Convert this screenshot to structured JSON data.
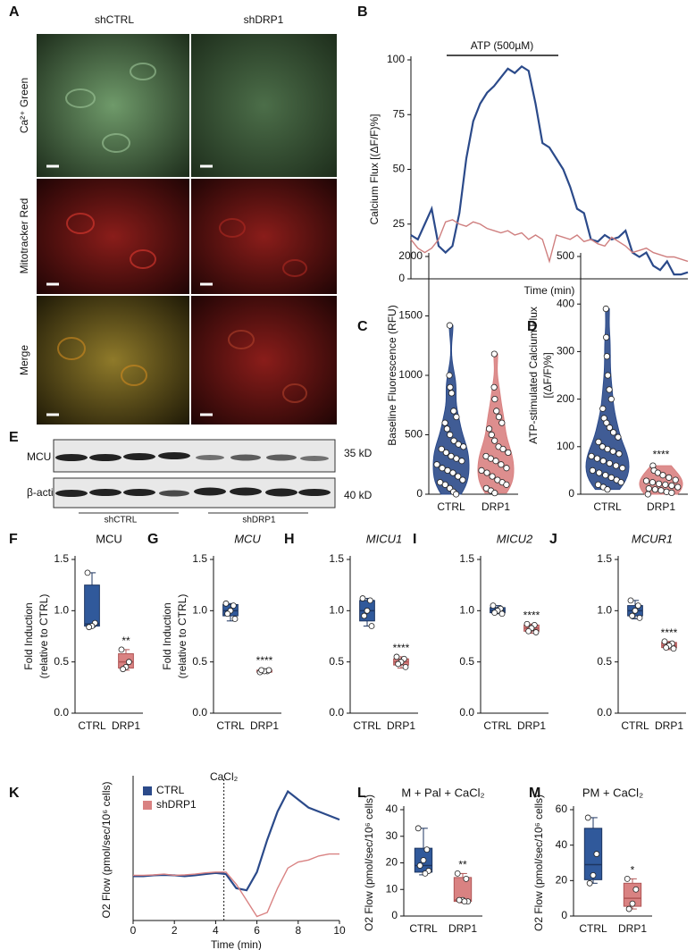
{
  "micrograph": {
    "panel": "A",
    "columns": [
      "shCTRL",
      "shDRP1"
    ],
    "rows": [
      "Ca²⁺ Green",
      "Mitotracker Red",
      "Merge"
    ]
  },
  "blot": {
    "panel": "E",
    "rows": [
      "MCU",
      "β-actin"
    ],
    "sizes": [
      "35 kD",
      "40 kD"
    ],
    "groups": [
      "shCTRL",
      "shDRP1"
    ]
  },
  "chart_data": [
    {
      "type": "line",
      "panel": "B",
      "annotation": "ATP (500µM)",
      "ylabel": "Calcium Flux [(ΔF/F)%]",
      "xlabel": "Time (min)",
      "x": [
        0,
        1,
        2,
        3,
        4,
        5,
        6,
        7,
        8,
        9,
        10,
        11,
        12,
        13,
        14,
        15,
        16,
        17,
        18,
        19,
        20,
        21,
        22,
        23,
        24,
        25,
        26,
        27,
        28,
        29,
        30,
        31,
        32,
        33,
        34,
        35,
        36,
        37,
        38,
        39,
        40
      ],
      "xlim": [
        0,
        40
      ],
      "ylim": [
        0,
        100
      ],
      "yticks": [
        0,
        25,
        50,
        75,
        100
      ],
      "series": [
        {
          "color": "#2b4a8a",
          "values": [
            20,
            18,
            25,
            32,
            15,
            12,
            15,
            30,
            55,
            72,
            80,
            85,
            88,
            92,
            96,
            94,
            97,
            95,
            80,
            62,
            60,
            55,
            50,
            42,
            32,
            30,
            18,
            17,
            20,
            18,
            19,
            22,
            12,
            10,
            12,
            6,
            4,
            8,
            2,
            2,
            3
          ]
        },
        {
          "color": "#cf7f7f",
          "values": [
            18,
            14,
            12,
            14,
            18,
            26,
            27,
            25,
            24,
            26,
            25,
            23,
            22,
            21,
            22,
            20,
            21,
            18,
            20,
            18,
            8,
            20,
            19,
            18,
            20,
            17,
            18,
            16,
            15,
            19,
            17,
            15,
            12,
            13,
            14,
            12,
            11,
            10,
            10,
            9,
            8
          ]
        }
      ]
    },
    {
      "type": "violin",
      "panel": "C",
      "ylabel": "Baseline Fluorescence (RFU)",
      "categories": [
        "CTRL",
        "DRP1"
      ],
      "ylim": [
        0,
        2000
      ],
      "yticks": [
        0,
        500,
        1000,
        1500,
        2000
      ],
      "colors": [
        "#2b4a8a",
        "#d98282"
      ],
      "points": [
        [
          1420,
          1000,
          900,
          850,
          700,
          650,
          600,
          550,
          500,
          450,
          420,
          400,
          380,
          350,
          320,
          300,
          280,
          250,
          220,
          200,
          180,
          150,
          120,
          100,
          80,
          50,
          20,
          0
        ],
        [
          1180,
          900,
          800,
          700,
          650,
          600,
          550,
          500,
          450,
          400,
          380,
          350,
          320,
          300,
          280,
          250,
          220,
          200,
          180,
          150,
          120,
          100,
          80,
          50,
          30,
          10
        ]
      ]
    },
    {
      "type": "violin",
      "panel": "D",
      "ylabel": [
        "ATP-stimulated Calcium Flux",
        "[(ΔF/F)%]"
      ],
      "categories": [
        "CTRL",
        "DRP1"
      ],
      "ylim": [
        0,
        500
      ],
      "yticks": [
        0,
        100,
        200,
        300,
        400,
        500
      ],
      "colors": [
        "#2b4a8a",
        "#d98282"
      ],
      "significance": "****",
      "points": [
        [
          390,
          330,
          290,
          250,
          220,
          200,
          180,
          160,
          150,
          140,
          130,
          120,
          110,
          100,
          95,
          90,
          85,
          80,
          75,
          70,
          65,
          60,
          55,
          50,
          45,
          40,
          35,
          30,
          25,
          20,
          15,
          10
        ],
        [
          60,
          50,
          45,
          40,
          35,
          30,
          28,
          25,
          22,
          20,
          18,
          15,
          12,
          10,
          8,
          5,
          3,
          0
        ]
      ]
    },
    {
      "type": "box",
      "panel": "F",
      "title": "MCU",
      "ylabel": [
        "Fold Induction",
        "(relative to CTRL)"
      ],
      "categories": [
        "CTRL",
        "DRP1"
      ],
      "ylim": [
        0,
        1.5
      ],
      "yticks": [
        {
          "value": 0,
          "label": "0.0"
        },
        0.5,
        {
          "value": 1,
          "label": "1.0"
        },
        1.5
      ],
      "colors": [
        "#30599b",
        "#d98282"
      ],
      "edge_colors": [
        "#1d3560",
        "#b05555"
      ],
      "significance": "**",
      "boxes": [
        {
          "min": 0.84,
          "q1": 0.85,
          "median": 0.87,
          "q3": 1.25,
          "max": 1.37
        },
        {
          "min": 0.42,
          "q1": 0.44,
          "median": 0.5,
          "q3": 0.58,
          "max": 0.62
        }
      ],
      "points": [
        [
          1.37,
          0.88,
          0.85,
          0.84
        ],
        [
          0.62,
          0.5,
          0.45,
          0.43
        ]
      ]
    },
    {
      "type": "box",
      "panel": "G",
      "title": "MCU",
      "italic": true,
      "ylabel": [
        "Fold Induction",
        "(relative to CTRL)"
      ],
      "categories": [
        "CTRL",
        "DRP1"
      ],
      "ylim": [
        0,
        1.5
      ],
      "yticks": [
        {
          "value": 0,
          "label": "0.0"
        },
        0.5,
        {
          "value": 1,
          "label": "1.0"
        },
        1.5
      ],
      "colors": [
        "#30599b",
        "#d98282"
      ],
      "edge_colors": [
        "#1d3560",
        "#b05555"
      ],
      "significance": "****",
      "boxes": [
        {
          "min": 0.9,
          "q1": 0.95,
          "median": 1.0,
          "q3": 1.06,
          "max": 1.07
        },
        {
          "min": 0.39,
          "q1": 0.4,
          "median": 0.41,
          "q3": 0.42,
          "max": 0.43
        }
      ],
      "points": [
        [
          1.07,
          1.05,
          1.0,
          0.97,
          0.92
        ],
        [
          0.4,
          0.41,
          0.41,
          0.42,
          0.42
        ]
      ]
    },
    {
      "type": "box",
      "panel": "H",
      "title": "MICU1",
      "italic": true,
      "categories": [
        "CTRL",
        "DRP1"
      ],
      "ylim": [
        0,
        1.5
      ],
      "yticks": [
        {
          "value": 0,
          "label": "0.0"
        },
        0.5,
        {
          "value": 1,
          "label": "1.0"
        },
        1.5
      ],
      "colors": [
        "#30599b",
        "#d98282"
      ],
      "edge_colors": [
        "#1d3560",
        "#b05555"
      ],
      "significance": "****",
      "boxes": [
        {
          "min": 0.85,
          "q1": 0.9,
          "median": 1.0,
          "q3": 1.1,
          "max": 1.12
        },
        {
          "min": 0.44,
          "q1": 0.47,
          "median": 0.5,
          "q3": 0.53,
          "max": 0.55
        }
      ],
      "points": [
        [
          1.12,
          1.1,
          1.0,
          0.95,
          0.85
        ],
        [
          0.55,
          0.53,
          0.5,
          0.48,
          0.45
        ]
      ]
    },
    {
      "type": "box",
      "panel": "I",
      "title": "MICU2",
      "italic": true,
      "categories": [
        "CTRL",
        "DRP1"
      ],
      "ylim": [
        0,
        1.5
      ],
      "yticks": [
        {
          "value": 0,
          "label": "0.0"
        },
        0.5,
        {
          "value": 1,
          "label": "1.0"
        },
        1.5
      ],
      "colors": [
        "#30599b",
        "#d98282"
      ],
      "edge_colors": [
        "#1d3560",
        "#b05555"
      ],
      "significance": "****",
      "boxes": [
        {
          "min": 0.97,
          "q1": 0.98,
          "median": 1.0,
          "q3": 1.03,
          "max": 1.05
        },
        {
          "min": 0.78,
          "q1": 0.8,
          "median": 0.83,
          "q3": 0.86,
          "max": 0.87
        }
      ],
      "points": [
        [
          1.05,
          1.02,
          1.0,
          0.98,
          0.97
        ],
        [
          0.87,
          0.86,
          0.83,
          0.8,
          0.79
        ]
      ]
    },
    {
      "type": "box",
      "panel": "J",
      "title": "MCUR1",
      "italic": true,
      "categories": [
        "CTRL",
        "DRP1"
      ],
      "ylim": [
        0,
        1.5
      ],
      "yticks": [
        {
          "value": 0,
          "label": "0.0"
        },
        0.5,
        {
          "value": 1,
          "label": "1.0"
        },
        1.5
      ],
      "colors": [
        "#30599b",
        "#d98282"
      ],
      "edge_colors": [
        "#1d3560",
        "#b05555"
      ],
      "significance": "****",
      "boxes": [
        {
          "min": 0.92,
          "q1": 0.95,
          "median": 1.0,
          "q3": 1.05,
          "max": 1.1
        },
        {
          "min": 0.62,
          "q1": 0.64,
          "median": 0.66,
          "q3": 0.69,
          "max": 0.7
        }
      ],
      "points": [
        [
          1.1,
          1.05,
          1.0,
          0.95,
          0.93
        ],
        [
          0.7,
          0.68,
          0.66,
          0.64,
          0.63
        ]
      ]
    },
    {
      "type": "line",
      "panel": "K",
      "ylabel": "O2 Flow (pmol/sec/10⁶ cells)",
      "xlabel": "Time (min)",
      "legend": true,
      "event": {
        "label": "CaCl₂",
        "x": 4.4
      },
      "x": [
        0,
        0.5,
        1,
        1.5,
        2,
        2.5,
        3,
        3.5,
        4,
        4.5,
        5,
        5.5,
        6,
        6.5,
        7,
        7.5,
        8,
        8.5,
        9,
        9.5,
        10
      ],
      "xlim": [
        0,
        10
      ],
      "xticks": [
        0,
        2,
        4,
        6,
        8,
        10
      ],
      "ylim": [
        0,
        35
      ],
      "series": [
        {
          "name": "CTRL",
          "color": "#2b4a8a",
          "values": [
            11,
            11,
            11.2,
            11.3,
            11.2,
            11,
            11.2,
            11.5,
            11.8,
            11.5,
            8,
            7.5,
            12,
            20,
            27,
            32,
            30,
            28,
            27,
            26,
            25
          ]
        },
        {
          "name": "shDRP1",
          "color": "#d98282",
          "values": [
            11.2,
            11.2,
            11.3,
            11.5,
            11.2,
            11.3,
            11.5,
            11.8,
            12,
            12,
            9,
            5,
            1,
            2,
            8,
            13,
            14.5,
            15,
            16,
            16.5,
            16.5
          ]
        }
      ]
    },
    {
      "type": "box",
      "panel": "L",
      "title": "M + Pal + CaCl₂",
      "ylabel": "O2 Flow (pmol/sec/10⁶ cells)",
      "categories": [
        "CTRL",
        "DRP1"
      ],
      "ylim": [
        0,
        40
      ],
      "yticks": [
        0,
        10,
        20,
        30,
        40
      ],
      "colors": [
        "#30599b",
        "#d98282"
      ],
      "edge_colors": [
        "#1d3560",
        "#b05555"
      ],
      "significance": "**",
      "boxes": [
        {
          "min": 15.5,
          "q1": 16.5,
          "median": 19,
          "q3": 25.5,
          "max": 33
        },
        {
          "min": 5,
          "q1": 5.5,
          "median": 6,
          "q3": 14.5,
          "max": 16
        }
      ],
      "points": [
        [
          33,
          25,
          21,
          19,
          17,
          16
        ],
        [
          16,
          14,
          6,
          6,
          5.5,
          5.5
        ]
      ]
    },
    {
      "type": "box",
      "panel": "M",
      "title": "PM + CaCl₂",
      "ylabel": "O2 Flow (pmol/sec/10⁶ cells)",
      "categories": [
        "CTRL",
        "DRP1"
      ],
      "ylim": [
        0,
        60
      ],
      "yticks": [
        0,
        20,
        40,
        60
      ],
      "colors": [
        "#30599b",
        "#d98282"
      ],
      "edge_colors": [
        "#1d3560",
        "#b05555"
      ],
      "significance": "*",
      "boxes": [
        {
          "min": 18.5,
          "q1": 20.5,
          "median": 29,
          "q3": 49.5,
          "max": 55.5
        },
        {
          "min": 4,
          "q1": 5.5,
          "median": 10,
          "q3": 18.5,
          "max": 21
        }
      ],
      "points": [
        [
          55.5,
          35,
          23,
          18.5
        ],
        [
          21,
          15,
          7,
          4
        ]
      ]
    }
  ]
}
